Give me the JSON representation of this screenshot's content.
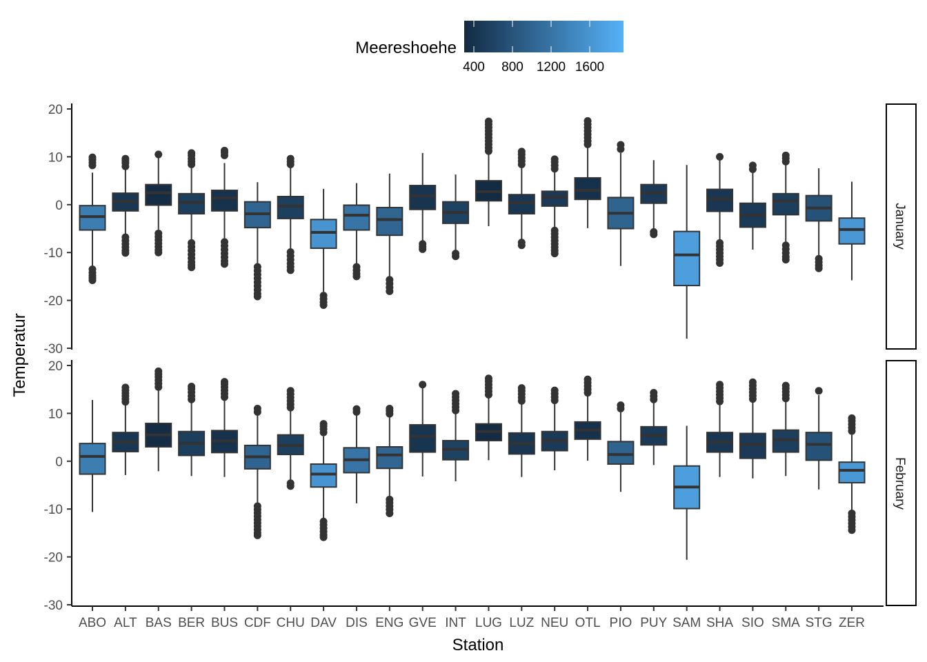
{
  "chart_data": {
    "type": "boxplot",
    "xlabel": "Station",
    "ylabel": "Temperatur",
    "ylim": [
      -30,
      20
    ],
    "yticks": [
      -30,
      -20,
      -10,
      0,
      10,
      20
    ],
    "grid": false,
    "legend": {
      "title": "Meereshoehe",
      "placement": "top",
      "type": "colorbar",
      "range": [
        300,
        1950
      ],
      "ticks": [
        400,
        800,
        1200,
        1600
      ],
      "low_color": "#132B43",
      "high_color": "#56B1F7"
    },
    "categories": [
      "ABO",
      "ALT",
      "BAS",
      "BER",
      "BUS",
      "CDF",
      "CHU",
      "DAV",
      "DIS",
      "ENG",
      "GVE",
      "INT",
      "LUG",
      "LUZ",
      "NEU",
      "OTL",
      "PIO",
      "PUY",
      "SAM",
      "SHA",
      "SIO",
      "SMA",
      "STG",
      "ZER"
    ],
    "fill_value": [
      1320,
      440,
      320,
      550,
      390,
      1020,
      560,
      1590,
      1200,
      1030,
      420,
      580,
      270,
      450,
      480,
      370,
      1000,
      480,
      1710,
      440,
      480,
      550,
      780,
      1640
    ],
    "panels": [
      {
        "label": "January",
        "boxes": [
          {
            "low": -12.8,
            "q1": -5.3,
            "median": -2.5,
            "q3": -0.2,
            "high": 6.7,
            "outliers": [
              -13.5,
              -14.2,
              -14.8,
              -15.3,
              -15.8,
              8.2,
              8.8,
              9.4,
              9.9
            ]
          },
          {
            "low": -6.2,
            "q1": -1.3,
            "median": 0.7,
            "q3": 2.4,
            "high": 7.3,
            "outliers": [
              -6.8,
              -7.5,
              -8.2,
              -8.9,
              -9.6,
              -10.1,
              8.0,
              8.7,
              9.2,
              9.6
            ]
          },
          {
            "low": -5.2,
            "q1": -0.1,
            "median": 2.5,
            "q3": 4.2,
            "high": 9.8,
            "outliers": [
              -6.0,
              -6.7,
              -7.4,
              -8.1,
              -8.8,
              -9.5,
              -10.0,
              10.5
            ]
          },
          {
            "low": -7.4,
            "q1": -1.9,
            "median": 0.5,
            "q3": 2.3,
            "high": 7.6,
            "outliers": [
              -8.0,
              -8.8,
              -9.6,
              -10.4,
              -11.2,
              -12.0,
              -12.6,
              -13.1,
              8.4,
              9.0,
              9.6,
              10.3,
              10.8
            ]
          },
          {
            "low": -7.0,
            "q1": -1.3,
            "median": 1.4,
            "q3": 3.0,
            "high": 8.7,
            "outliers": [
              -7.8,
              -8.6,
              -9.4,
              -10.2,
              -11.0,
              -11.8,
              -12.4,
              10.3,
              10.9,
              11.3
            ]
          },
          {
            "low": -12.4,
            "q1": -4.8,
            "median": -1.9,
            "q3": 0.6,
            "high": 4.7,
            "outliers": [
              -13.0,
              -13.8,
              -14.6,
              -15.4,
              -16.2,
              -17.0,
              -17.8,
              -18.6,
              -19.2
            ]
          },
          {
            "low": -9.3,
            "q1": -2.9,
            "median": -0.3,
            "q3": 1.7,
            "high": 7.7,
            "outliers": [
              -9.9,
              -10.7,
              -11.5,
              -12.3,
              -13.0,
              -13.7,
              8.4,
              9.0,
              9.6
            ]
          },
          {
            "low": -18.2,
            "q1": -9.1,
            "median": -5.8,
            "q3": -3.1,
            "high": 3.3,
            "outliers": [
              -19.0,
              -19.7,
              -20.4,
              -21.0
            ]
          },
          {
            "low": -12.3,
            "q1": -5.3,
            "median": -2.2,
            "q3": -0.1,
            "high": 4.5,
            "outliers": [
              -13.0,
              -13.7,
              -14.4,
              -15.0
            ]
          },
          {
            "low": -15.0,
            "q1": -6.4,
            "median": -3.1,
            "q3": -0.6,
            "high": 6.5,
            "outliers": [
              -15.7,
              -16.5,
              -17.3,
              -18.1
            ]
          },
          {
            "low": -7.6,
            "q1": -1.0,
            "median": 1.8,
            "q3": 4.0,
            "high": 10.8,
            "outliers": [
              -8.2,
              -8.8,
              -9.3
            ]
          },
          {
            "low": -9.6,
            "q1": -3.9,
            "median": -1.6,
            "q3": 0.6,
            "high": 6.3,
            "outliers": [
              -10.2,
              -10.8
            ]
          },
          {
            "low": -4.5,
            "q1": 0.8,
            "median": 2.7,
            "q3": 5.0,
            "high": 10.5,
            "outliers": [
              11.2,
              11.9,
              12.6,
              13.3,
              14.0,
              14.7,
              15.4,
              16.1,
              16.8,
              17.4
            ]
          },
          {
            "low": -7.3,
            "q1": -1.9,
            "median": 0.4,
            "q3": 2.1,
            "high": 7.7,
            "outliers": [
              -7.9,
              -8.5,
              8.4,
              9.1,
              9.8,
              10.5,
              11.1
            ]
          },
          {
            "low": -4.9,
            "q1": -0.3,
            "median": 1.6,
            "q3": 2.8,
            "high": 6.8,
            "outliers": [
              -5.4,
              -6.1,
              -6.8,
              -7.5,
              -8.2,
              -8.9,
              -9.6,
              -10.2,
              7.5,
              8.2,
              8.9,
              9.5
            ]
          },
          {
            "low": -4.9,
            "q1": 1.1,
            "median": 3.0,
            "q3": 5.6,
            "high": 11.9,
            "outliers": [
              12.6,
              13.3,
              14.0,
              14.7,
              15.4,
              16.1,
              16.8,
              17.5
            ]
          },
          {
            "low": -12.8,
            "q1": -5.0,
            "median": -1.8,
            "q3": 1.5,
            "high": 10.8,
            "outliers": [
              11.6,
              12.5
            ]
          },
          {
            "low": -5.2,
            "q1": 0.3,
            "median": 2.5,
            "q3": 4.2,
            "high": 9.3,
            "outliers": [
              -5.7,
              -6.2
            ]
          },
          {
            "low": -28.0,
            "q1": -16.9,
            "median": -10.5,
            "q3": -5.6,
            "high": 8.3,
            "outliers": []
          },
          {
            "low": -7.4,
            "q1": -1.4,
            "median": 1.2,
            "q3": 3.2,
            "high": 9.4,
            "outliers": [
              -8.0,
              -8.7,
              -9.4,
              -10.1,
              -10.8,
              -11.5,
              -12.2,
              10.0
            ]
          },
          {
            "low": -9.4,
            "q1": -4.7,
            "median": -2.2,
            "q3": 0.3,
            "high": 6.6,
            "outliers": [
              7.4,
              8.2
            ]
          },
          {
            "low": -7.9,
            "q1": -2.1,
            "median": 0.8,
            "q3": 2.3,
            "high": 8.3,
            "outliers": [
              -8.5,
              -9.3,
              -10.1,
              -10.9,
              -11.5,
              9.0,
              9.7,
              10.3
            ]
          },
          {
            "low": -10.6,
            "q1": -3.4,
            "median": -0.7,
            "q3": 1.9,
            "high": 7.6,
            "outliers": [
              -11.3,
              -12.0,
              -12.7,
              -13.3
            ]
          },
          {
            "low": -15.8,
            "q1": -8.2,
            "median": -5.2,
            "q3": -2.8,
            "high": 4.8,
            "outliers": []
          }
        ]
      },
      {
        "label": "February",
        "boxes": [
          {
            "low": -10.6,
            "q1": -2.7,
            "median": 1.0,
            "q3": 3.7,
            "high": 12.8,
            "outliers": []
          },
          {
            "low": -2.9,
            "q1": 2.0,
            "median": 4.0,
            "q3": 6.0,
            "high": 11.8,
            "outliers": [
              12.4,
              13.0,
              13.6,
              14.2,
              14.8,
              15.4
            ]
          },
          {
            "low": -2.1,
            "q1": 3.0,
            "median": 5.5,
            "q3": 7.9,
            "high": 14.8,
            "outliers": [
              15.5,
              16.2,
              16.9,
              17.6,
              18.2,
              18.8
            ]
          },
          {
            "low": -3.1,
            "q1": 1.2,
            "median": 3.7,
            "q3": 6.2,
            "high": 12.2,
            "outliers": [
              12.9,
              13.6,
              14.4,
              15.1,
              15.6
            ]
          },
          {
            "low": -3.3,
            "q1": 1.8,
            "median": 4.2,
            "q3": 6.4,
            "high": 12.7,
            "outliers": [
              13.4,
              14.1,
              14.8,
              15.5,
              16.1,
              16.6
            ]
          },
          {
            "low": -8.8,
            "q1": -1.6,
            "median": 0.9,
            "q3": 3.3,
            "high": 9.6,
            "outliers": [
              -9.4,
              -10.1,
              -10.8,
              -11.5,
              -12.2,
              -12.9,
              -13.6,
              -14.3,
              -15.0,
              -15.5,
              10.3,
              11.0
            ]
          },
          {
            "low": -4.1,
            "q1": 1.4,
            "median": 3.3,
            "q3": 5.5,
            "high": 10.5,
            "outliers": [
              -4.6,
              -5.2,
              11.2,
              11.9,
              12.6,
              13.3,
              14.0,
              14.7
            ]
          },
          {
            "low": -11.9,
            "q1": -5.4,
            "median": -2.7,
            "q3": -0.6,
            "high": 5.2,
            "outliers": [
              -12.6,
              -13.3,
              -14.0,
              -14.7,
              -15.4,
              -15.9,
              6.0,
              6.7,
              7.3,
              7.8
            ]
          },
          {
            "low": -8.8,
            "q1": -2.4,
            "median": 0.3,
            "q3": 2.8,
            "high": 9.6,
            "outliers": [
              10.3,
              10.9
            ]
          },
          {
            "low": -7.3,
            "q1": -1.5,
            "median": 1.3,
            "q3": 3.0,
            "high": 9.2,
            "outliers": [
              -8.0,
              -8.7,
              -9.4,
              -10.1,
              -10.9,
              9.9,
              10.5,
              11.0
            ]
          },
          {
            "low": -3.2,
            "q1": 1.9,
            "median": 5.2,
            "q3": 7.6,
            "high": 15.3,
            "outliers": [
              16.0
            ]
          },
          {
            "low": -4.2,
            "q1": 0.3,
            "median": 2.5,
            "q3": 4.3,
            "high": 9.9,
            "outliers": [
              10.6,
              11.3,
              12.0,
              12.7,
              13.4,
              14.1
            ]
          },
          {
            "low": 0.2,
            "q1": 4.3,
            "median": 6.2,
            "q3": 7.8,
            "high": 13.2,
            "outliers": [
              13.9,
              14.6,
              15.3,
              16.0,
              16.7,
              17.3
            ]
          },
          {
            "low": -3.3,
            "q1": 1.5,
            "median": 3.7,
            "q3": 5.9,
            "high": 11.9,
            "outliers": [
              12.6,
              13.3,
              14.0,
              14.7,
              15.3
            ]
          },
          {
            "low": -1.9,
            "q1": 2.2,
            "median": 4.3,
            "q3": 6.2,
            "high": 12.0,
            "outliers": [
              12.7,
              13.4,
              14.1,
              14.8
            ]
          },
          {
            "low": 0.1,
            "q1": 4.6,
            "median": 6.5,
            "q3": 8.2,
            "high": 13.6,
            "outliers": [
              14.3,
              15.0,
              15.7,
              16.4,
              17.1
            ]
          },
          {
            "low": -6.4,
            "q1": -0.6,
            "median": 1.4,
            "q3": 4.1,
            "high": 10.2,
            "outliers": [
              11.0,
              11.7
            ]
          },
          {
            "low": -0.8,
            "q1": 3.4,
            "median": 5.4,
            "q3": 7.2,
            "high": 12.2,
            "outliers": [
              12.9,
              13.6,
              14.3
            ]
          },
          {
            "low": -20.6,
            "q1": -9.9,
            "median": -5.4,
            "q3": -1.0,
            "high": 7.4,
            "outliers": []
          },
          {
            "low": -3.3,
            "q1": 1.9,
            "median": 4.0,
            "q3": 6.0,
            "high": 11.8,
            "outliers": [
              12.5,
              13.2,
              13.9,
              14.6,
              15.3,
              16.0
            ]
          },
          {
            "low": -3.6,
            "q1": 0.6,
            "median": 3.5,
            "q3": 5.8,
            "high": 12.3,
            "outliers": [
              13.0,
              13.7,
              14.4,
              15.1,
              15.8,
              16.5
            ]
          },
          {
            "low": -3.1,
            "q1": 1.9,
            "median": 4.5,
            "q3": 6.5,
            "high": 12.4,
            "outliers": [
              13.1,
              13.8,
              14.5,
              15.2,
              15.8
            ]
          },
          {
            "low": -5.9,
            "q1": 0.2,
            "median": 3.5,
            "q3": 6.0,
            "high": 13.8,
            "outliers": [
              14.7
            ]
          },
          {
            "low": -10.2,
            "q1": -4.5,
            "median": -1.9,
            "q3": -0.2,
            "high": 5.5,
            "outliers": [
              -10.9,
              -11.6,
              -12.3,
              -13.0,
              -13.7,
              -14.4,
              6.3,
              7.0,
              7.7,
              8.4,
              9.0
            ]
          }
        ]
      }
    ]
  }
}
